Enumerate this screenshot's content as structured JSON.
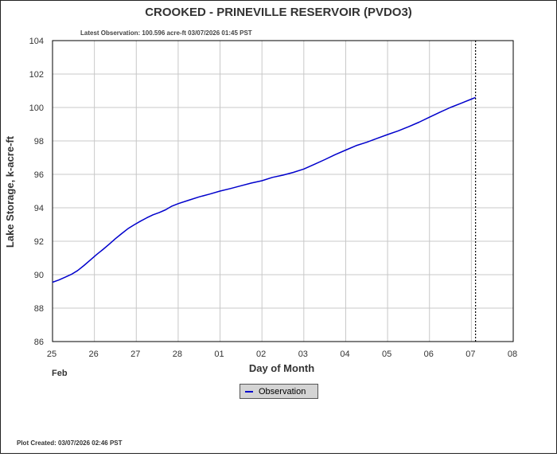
{
  "chart_data": {
    "type": "line",
    "title": "CROOKED - PRINEVILLE RESERVOIR  (PVDO3)",
    "subtitle": "Latest Observation: 100.596 acre-ft 03/07/2026 01:45 PST",
    "xlabel": "Day of Month",
    "ylabel": "Lake Storage, k-acre-ft",
    "x_month_label": "Feb",
    "x_ticks": [
      "25",
      "26",
      "27",
      "28",
      "01",
      "02",
      "03",
      "04",
      "05",
      "06",
      "07",
      "08"
    ],
    "xlim": [
      0,
      11
    ],
    "ylim": [
      86,
      104
    ],
    "y_ticks": [
      86,
      88,
      90,
      92,
      94,
      96,
      98,
      100,
      102,
      104
    ],
    "grid": true,
    "latest_marker_x": 10.1,
    "legend_position": "bottom-center",
    "series": [
      {
        "name": "Observation",
        "color": "#0000cc",
        "x": [
          0.0,
          0.15,
          0.3,
          0.45,
          0.6,
          0.75,
          0.9,
          1.05,
          1.2,
          1.35,
          1.5,
          1.65,
          1.8,
          1.95,
          2.1,
          2.25,
          2.4,
          2.55,
          2.7,
          2.85,
          3.0,
          3.25,
          3.5,
          3.75,
          4.0,
          4.25,
          4.5,
          4.75,
          5.0,
          5.25,
          5.5,
          5.75,
          6.0,
          6.25,
          6.5,
          6.75,
          7.0,
          7.25,
          7.5,
          7.75,
          8.0,
          8.25,
          8.5,
          8.75,
          9.0,
          9.25,
          9.5,
          9.75,
          10.0,
          10.1
        ],
        "values": [
          89.55,
          89.68,
          89.85,
          90.02,
          90.25,
          90.55,
          90.87,
          91.2,
          91.5,
          91.82,
          92.15,
          92.45,
          92.75,
          92.98,
          93.2,
          93.4,
          93.58,
          93.72,
          93.88,
          94.1,
          94.25,
          94.45,
          94.65,
          94.82,
          95.0,
          95.15,
          95.32,
          95.48,
          95.62,
          95.82,
          95.95,
          96.12,
          96.32,
          96.6,
          96.88,
          97.18,
          97.45,
          97.72,
          97.92,
          98.15,
          98.38,
          98.6,
          98.85,
          99.12,
          99.42,
          99.72,
          100.0,
          100.25,
          100.5,
          100.6
        ]
      }
    ]
  },
  "legend": {
    "label": "Observation"
  },
  "footer": {
    "plot_created": "Plot Created: 03/07/2026 02:46 PST"
  },
  "colors": {
    "series": "#0000cc",
    "grid": "#c8c8c8",
    "marker": "#000000"
  }
}
